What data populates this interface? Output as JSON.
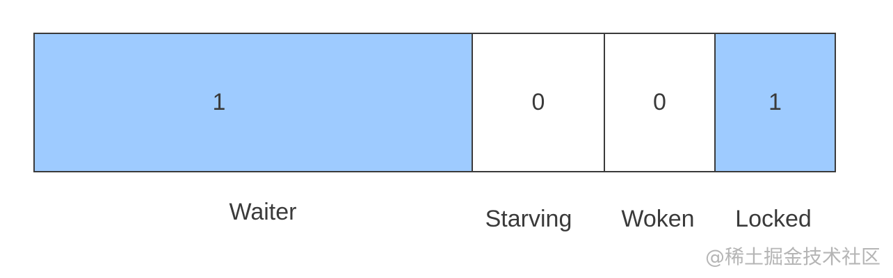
{
  "colors": {
    "set_bit_fill": "#9ecbff",
    "unset_bit_fill": "#ffffff",
    "border": "#3a3a3a",
    "text": "#3a3a3a",
    "watermark": "#b5b5b5"
  },
  "fields": [
    {
      "name": "Waiter",
      "value": "1",
      "set": true
    },
    {
      "name": "Starving",
      "value": "0",
      "set": false
    },
    {
      "name": "Woken",
      "value": "0",
      "set": false
    },
    {
      "name": "Locked",
      "value": "1",
      "set": true
    }
  ],
  "watermark": "@稀土掘金技术社区"
}
